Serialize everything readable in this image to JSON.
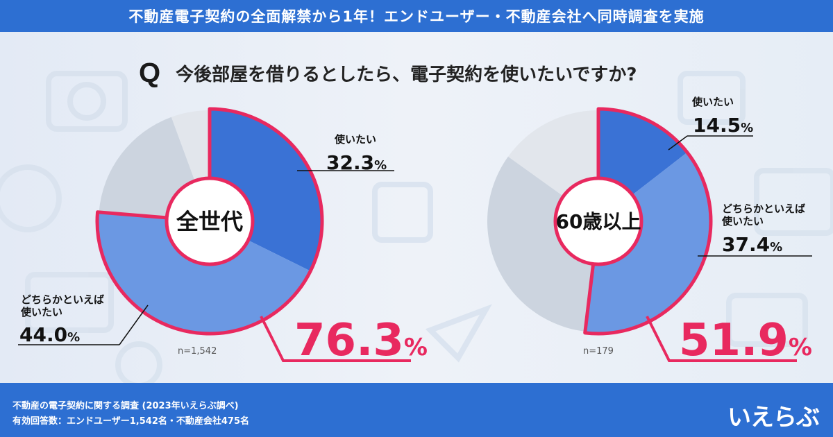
{
  "header": {
    "title": "不動産電子契約の全面解禁から1年！エンドユーザー・不動産会社へ同時調査を実施"
  },
  "question": {
    "mark": "Q",
    "text": "今後部屋を借りるとしたら、電子契約を使いたいですか?"
  },
  "footer": {
    "line1": "不動産の電子契約に関する調査 (2023年いえらぶ調べ)",
    "line2": "有効回答数：エンドユーザー1,542名・不動産会社475名",
    "logo": "いえらぶ"
  },
  "colors": {
    "dark_blue": "#3a72d5",
    "light_blue": "#6b98e3",
    "gray": "#ccd4df",
    "light_gray": "#e2e6ec",
    "accent": "#e8295f"
  },
  "chart_data": [
    {
      "type": "pie",
      "center_label": "全世代",
      "sample": "n=1,542",
      "total_label": "76.3",
      "total_unit": "%",
      "slices": [
        {
          "label": "使いたい",
          "value": 32.3,
          "unit": "%",
          "color": "#3a72d5"
        },
        {
          "label": "どちらかといえば\n使いたい",
          "value": 44.0,
          "unit": "%",
          "color": "#6b98e3"
        },
        {
          "label": "",
          "value": 18.1,
          "unit": "",
          "color": "#ccd4df"
        },
        {
          "label": "",
          "value": 5.6,
          "unit": "",
          "color": "#e2e6ec"
        }
      ]
    },
    {
      "type": "pie",
      "center_label": "60歳以上",
      "sample": "n=179",
      "total_label": "51.9",
      "total_unit": "%",
      "slices": [
        {
          "label": "使いたい",
          "value": 14.5,
          "unit": "%",
          "color": "#3a72d5"
        },
        {
          "label": "どちらかといえば\n使いたい",
          "value": 37.4,
          "unit": "%",
          "color": "#6b98e3"
        },
        {
          "label": "",
          "value": 33.0,
          "unit": "",
          "color": "#ccd4df"
        },
        {
          "label": "",
          "value": 15.1,
          "unit": "",
          "color": "#e2e6ec"
        }
      ]
    }
  ]
}
